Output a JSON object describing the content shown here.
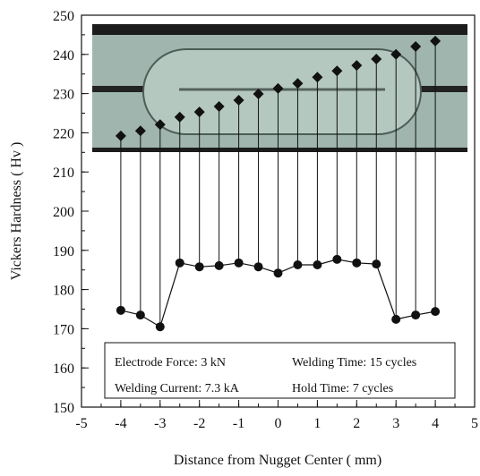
{
  "chart_data": {
    "type": "scatter",
    "x_label": "Distance from Nugget Center ( mm)",
    "y_label": "Vickers Hardness ( Hv )",
    "x": [
      -4,
      -3.5,
      -3,
      -2.5,
      -2,
      -1.5,
      -1,
      -0.5,
      0,
      0.5,
      1,
      1.5,
      2,
      2.5,
      3,
      3.5,
      4
    ],
    "series": [
      {
        "marker": "circle",
        "line": true,
        "color": "#111111",
        "values": [
          174.7,
          173.5,
          170.5,
          186.8,
          185.8,
          186.1,
          186.8,
          185.8,
          184.2,
          186.3,
          186.3,
          187.7,
          186.8,
          186.5,
          172.4,
          173.5,
          174.4
        ]
      },
      {
        "marker": "diamond",
        "line": false,
        "color": "#111111",
        "values": [
          219.2,
          220.5,
          222.1,
          224,
          225.3,
          226.7,
          228.3,
          229.9,
          231.3,
          232.6,
          234.2,
          235.8,
          237.2,
          238.8,
          240,
          242,
          243.4
        ]
      }
    ],
    "xlim": [
      -5,
      5
    ],
    "xticks": [
      -5,
      -4,
      -3,
      -2,
      -1,
      0,
      1,
      2,
      3,
      4,
      5
    ],
    "xminor_step": 0.5,
    "ylim": [
      150,
      250
    ],
    "yticks": [
      150,
      160,
      170,
      180,
      190,
      200,
      210,
      220,
      230,
      240,
      250
    ],
    "yminor_step": 5,
    "annotations": [
      "Electrode Force: 3 kN",
      "Welding Time: 15 cycles",
      "Welding Current: 7.3 kA",
      "Hold Time: 7 cycles"
    ]
  }
}
